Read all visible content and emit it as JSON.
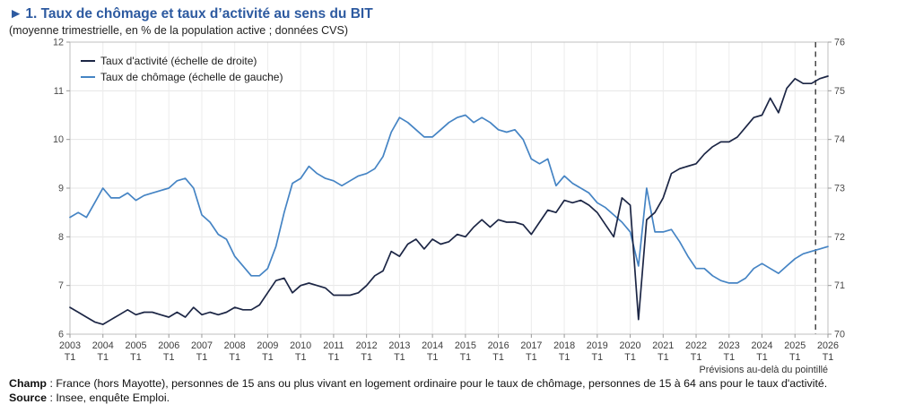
{
  "header": {
    "marker": "►",
    "title": "1. Taux de chômage et taux d’activité au sens du BIT",
    "subtitle": "(moyenne trimestrielle, en % de la population active ; données CVS)"
  },
  "chart_data": {
    "type": "line",
    "title": "Taux de chômage et taux d'activité au sens du BIT",
    "x_unit": "trimestre",
    "x_tick_years": [
      2003,
      2004,
      2005,
      2006,
      2007,
      2008,
      2009,
      2010,
      2011,
      2012,
      2013,
      2014,
      2015,
      2016,
      2017,
      2018,
      2019,
      2020,
      2021,
      2022,
      2023,
      2024,
      2025,
      2026
    ],
    "x_tick_sub": "T1",
    "left_axis": {
      "min": 6,
      "max": 12,
      "ticks": [
        6,
        7,
        8,
        9,
        10,
        11,
        12
      ]
    },
    "right_axis": {
      "min": 70,
      "max": 76,
      "ticks": [
        70,
        71,
        72,
        73,
        74,
        75,
        76
      ]
    },
    "grid": true,
    "legend_position": "top-left",
    "forecast_note": "Prévisions au-delà du pointillé",
    "forecast_boundary_quarter_index": 90.5,
    "series": [
      {
        "name": "Taux d'activité (échelle de droite)",
        "axis": "right",
        "color": "#1c2645",
        "values": [
          70.55,
          70.45,
          70.35,
          70.25,
          70.2,
          70.3,
          70.4,
          70.5,
          70.4,
          70.45,
          70.45,
          70.4,
          70.35,
          70.45,
          70.35,
          70.55,
          70.4,
          70.45,
          70.4,
          70.45,
          70.55,
          70.5,
          70.5,
          70.6,
          70.85,
          71.1,
          71.15,
          70.85,
          71.0,
          71.05,
          71.0,
          70.95,
          70.8,
          70.8,
          70.8,
          70.85,
          71.0,
          71.2,
          71.3,
          71.7,
          71.6,
          71.85,
          71.95,
          71.75,
          71.95,
          71.85,
          71.9,
          72.05,
          72.0,
          72.2,
          72.35,
          72.2,
          72.35,
          72.3,
          72.3,
          72.25,
          72.05,
          72.3,
          72.55,
          72.5,
          72.75,
          72.7,
          72.75,
          72.65,
          72.5,
          72.25,
          72.0,
          72.8,
          72.65,
          70.3,
          72.35,
          72.5,
          72.8,
          73.3,
          73.4,
          73.45,
          73.5,
          73.7,
          73.85,
          73.95,
          73.95,
          74.05,
          74.25,
          74.45,
          74.5,
          74.85,
          74.55,
          75.05,
          75.25,
          75.15,
          75.15,
          75.25,
          75.3
        ]
      },
      {
        "name": "Taux de chômage (échelle de gauche)",
        "axis": "left",
        "color": "#4584c4",
        "values": [
          8.4,
          8.5,
          8.4,
          8.7,
          9.0,
          8.8,
          8.8,
          8.9,
          8.75,
          8.85,
          8.9,
          8.95,
          9.0,
          9.15,
          9.2,
          9.0,
          8.45,
          8.3,
          8.05,
          7.95,
          7.6,
          7.4,
          7.2,
          7.2,
          7.35,
          7.8,
          8.5,
          9.1,
          9.2,
          9.45,
          9.3,
          9.2,
          9.15,
          9.05,
          9.15,
          9.25,
          9.3,
          9.4,
          9.65,
          10.15,
          10.45,
          10.35,
          10.2,
          10.05,
          10.05,
          10.2,
          10.35,
          10.45,
          10.5,
          10.35,
          10.45,
          10.35,
          10.2,
          10.15,
          10.2,
          10.0,
          9.6,
          9.5,
          9.6,
          9.05,
          9.25,
          9.1,
          9.0,
          8.9,
          8.7,
          8.6,
          8.45,
          8.3,
          8.1,
          7.4,
          9.0,
          8.1,
          8.1,
          8.15,
          7.9,
          7.6,
          7.35,
          7.35,
          7.2,
          7.1,
          7.05,
          7.05,
          7.15,
          7.35,
          7.45,
          7.35,
          7.25,
          7.4,
          7.55,
          7.65,
          7.7,
          7.75,
          7.8
        ]
      }
    ]
  },
  "footer": {
    "champ_label": "Champ",
    "champ_text": " : France (hors Mayotte), personnes de 15 ans ou plus vivant en logement ordinaire pour le taux de chômage, personnes de 15 à 64 ans pour le taux d'activité.",
    "source_label": "Source",
    "source_text": " : Insee, enquête Emploi."
  }
}
